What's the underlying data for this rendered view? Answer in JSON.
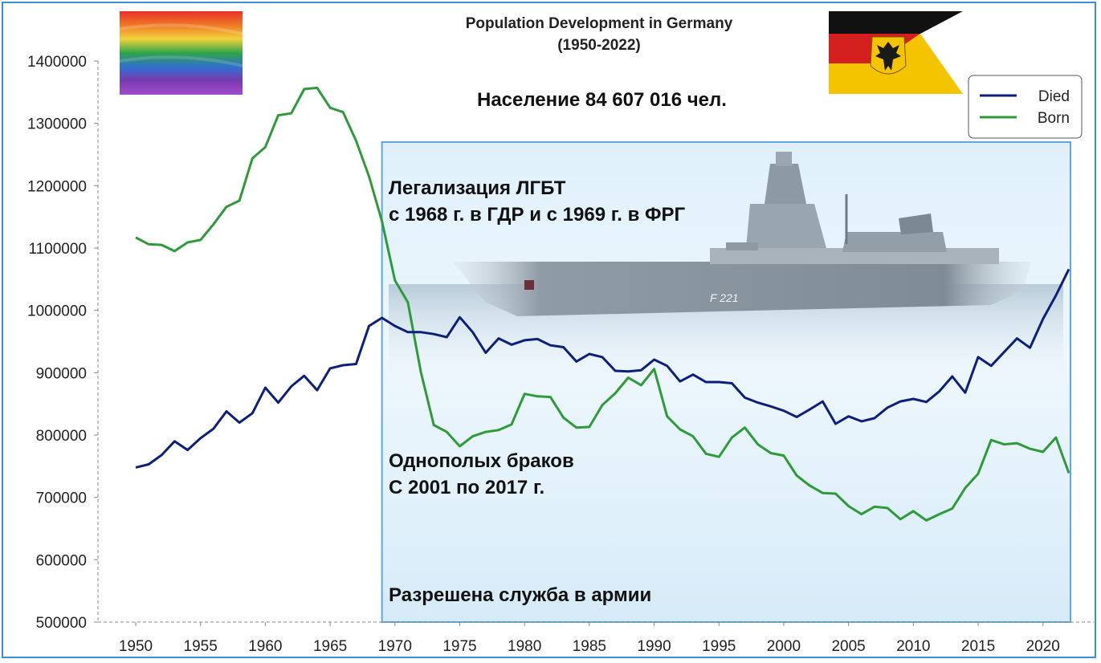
{
  "chart_data": {
    "type": "line",
    "title": "Population Development in Germany",
    "subtitle": "(1950-2022)",
    "xlabel": "",
    "ylabel": "",
    "xlim": [
      1950,
      2022
    ],
    "ylim": [
      500000,
      1400000
    ],
    "x_ticks": [
      "1950",
      "1955",
      "1960",
      "1965",
      "1970",
      "1975",
      "1980",
      "1985",
      "1990",
      "1995",
      "2000",
      "2005",
      "2010",
      "2015",
      "2020"
    ],
    "y_ticks": [
      "500000",
      "600000",
      "700000",
      "800000",
      "900000",
      "1000000",
      "1100000",
      "1200000",
      "1300000",
      "1400000"
    ],
    "legend": [
      "Died",
      "Born"
    ],
    "legend_position": "top-right",
    "colors": {
      "Died": "#0d1f7a",
      "Born": "#2e9a3a"
    },
    "x": [
      1950,
      1951,
      1952,
      1953,
      1954,
      1955,
      1956,
      1957,
      1958,
      1959,
      1960,
      1961,
      1962,
      1963,
      1964,
      1965,
      1966,
      1967,
      1968,
      1969,
      1970,
      1971,
      1972,
      1973,
      1974,
      1975,
      1976,
      1977,
      1978,
      1979,
      1980,
      1981,
      1982,
      1983,
      1984,
      1985,
      1986,
      1987,
      1988,
      1989,
      1990,
      1991,
      1992,
      1993,
      1994,
      1995,
      1996,
      1997,
      1998,
      1999,
      2000,
      2001,
      2002,
      2003,
      2004,
      2005,
      2006,
      2007,
      2008,
      2009,
      2010,
      2011,
      2012,
      2013,
      2014,
      2015,
      2016,
      2017,
      2018,
      2019,
      2020,
      2021,
      2022
    ],
    "series": [
      {
        "name": "Died",
        "values": [
          748000,
          753000,
          768000,
          790000,
          776000,
          795000,
          810000,
          838000,
          820000,
          835000,
          876000,
          852000,
          878000,
          895000,
          872000,
          907000,
          912000,
          914000,
          975000,
          988000,
          975000,
          965000,
          965000,
          962000,
          957000,
          989000,
          965000,
          932000,
          955000,
          945000,
          952000,
          954000,
          944000,
          941000,
          918000,
          930000,
          925000,
          903000,
          902000,
          904000,
          921000,
          911000,
          886000,
          897000,
          885000,
          885000,
          883000,
          860000,
          852000,
          846000,
          839000,
          829000,
          841000,
          854000,
          818000,
          830000,
          822000,
          827000,
          844000,
          854000,
          858000,
          853000,
          870000,
          894000,
          868000,
          925000,
          911000,
          933000,
          955000,
          940000,
          986000,
          1024000,
          1066000
        ]
      },
      {
        "name": "Born",
        "values": [
          1117000,
          1106000,
          1105000,
          1095000,
          1109000,
          1113000,
          1138000,
          1166000,
          1176000,
          1244000,
          1262000,
          1313000,
          1316000,
          1355000,
          1357000,
          1325000,
          1318000,
          1272000,
          1215000,
          1143000,
          1048000,
          1013000,
          901000,
          816000,
          805000,
          782000,
          798000,
          805000,
          808000,
          817000,
          866000,
          862000,
          861000,
          828000,
          812000,
          813000,
          848000,
          867000,
          892000,
          880000,
          906000,
          830000,
          809000,
          798000,
          770000,
          765000,
          796000,
          812000,
          785000,
          771000,
          767000,
          735000,
          719000,
          707000,
          706000,
          686000,
          673000,
          685000,
          683000,
          665000,
          678000,
          663000,
          673000,
          682000,
          715000,
          738000,
          792000,
          785000,
          787000,
          778000,
          773000,
          796000,
          739000
        ]
      }
    ],
    "annotations": {
      "population": "Население 84 607 016 чел.",
      "lgbt_line1": "Легализация ЛГБТ",
      "lgbt_line2": "с 1968 г. в ГДР и с 1969 г. в ФРГ",
      "marriage_line1": "Однополых браков",
      "marriage_line2": "С 2001 по 2017 г.",
      "army": "Разрешена служба в армии",
      "ship_hull_number": "F 221"
    },
    "highlight_range": [
      1969,
      2022
    ]
  }
}
